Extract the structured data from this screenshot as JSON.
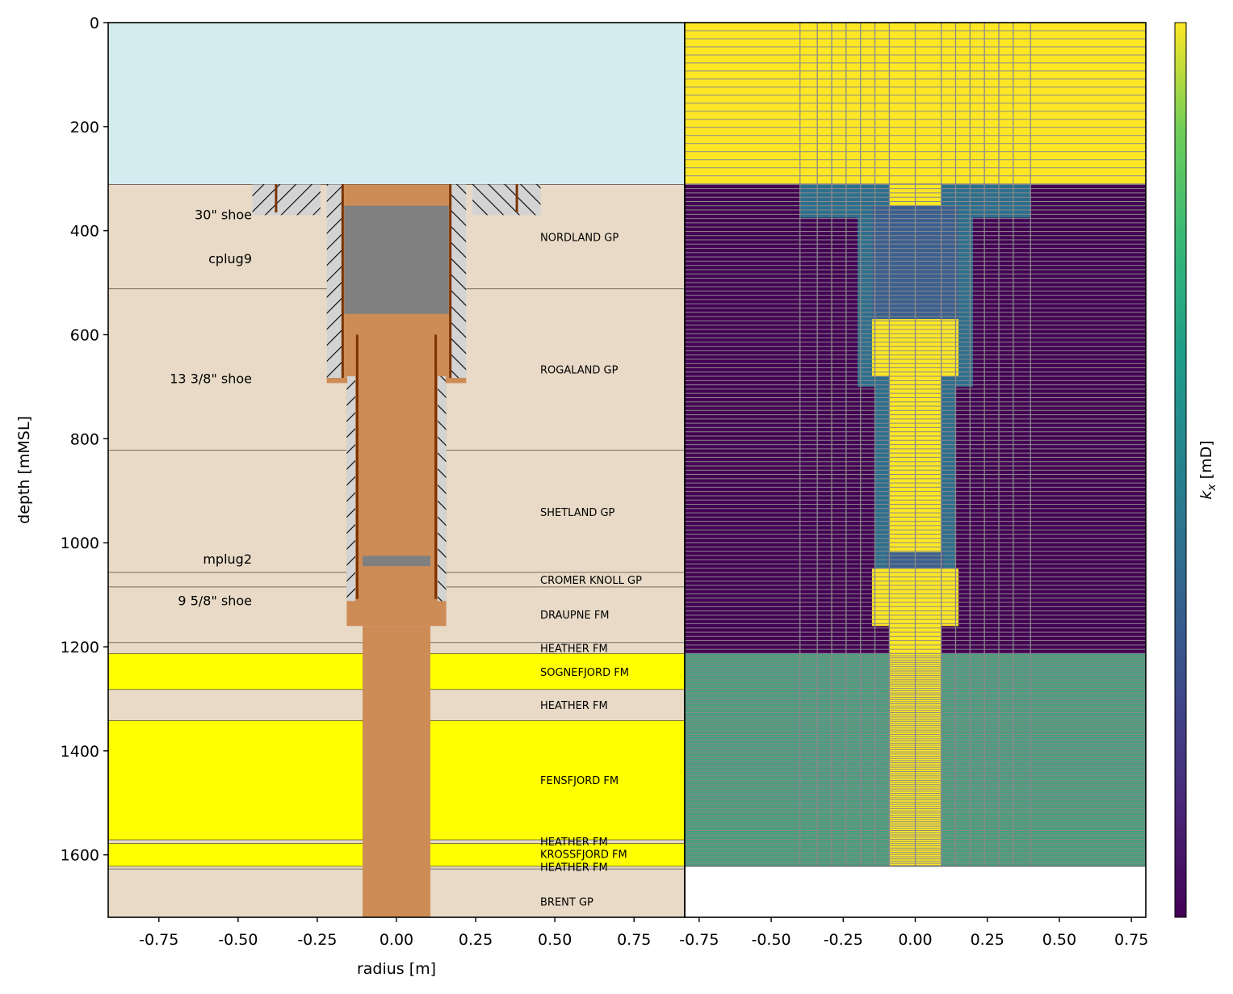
{
  "chart_data": [
    {
      "type": "well-schematic",
      "xlabel": "radius [m]",
      "ylabel": "depth [mMSL]",
      "xlim": [
        -0.91,
        0.91
      ],
      "ylim": [
        1720,
        0
      ],
      "xticks": [
        -0.75,
        -0.5,
        -0.25,
        0.0,
        0.25,
        0.5,
        0.75
      ],
      "xtick_labels": [
        "-0.75",
        "-0.50",
        "-0.25",
        "0.00",
        "0.25",
        "0.50",
        "0.75"
      ],
      "yticks": [
        0,
        200,
        400,
        600,
        800,
        1000,
        1200,
        1400,
        1600
      ],
      "ytick_labels": [
        "0",
        "200",
        "400",
        "600",
        "800",
        "1000",
        "1200",
        "1400",
        "1600"
      ],
      "water_bottom": 311,
      "formations": [
        {
          "name": "NORDLAND GP",
          "top": 311,
          "bottom": 512,
          "color": "#e8dac6"
        },
        {
          "name": "ROGALAND GP",
          "top": 512,
          "bottom": 822,
          "color": "#e8dac6"
        },
        {
          "name": "SHETLAND GP",
          "top": 822,
          "bottom": 1057,
          "color": "#e8dac6"
        },
        {
          "name": "CROMER KNOLL GP",
          "top": 1057,
          "bottom": 1085,
          "color": "#e8dac6"
        },
        {
          "name": "DRAUPNE FM",
          "top": 1085,
          "bottom": 1192,
          "color": "#e8dac6"
        },
        {
          "name": "HEATHER FM",
          "top": 1192,
          "bottom": 1213,
          "color": "#e8dac6"
        },
        {
          "name": "SOGNEFJORD FM",
          "top": 1213,
          "bottom": 1282,
          "color": "#ffff00"
        },
        {
          "name": "HEATHER FM",
          "top": 1282,
          "bottom": 1342,
          "color": "#e8dac6"
        },
        {
          "name": "FENSFJORD FM",
          "top": 1342,
          "bottom": 1571,
          "color": "#ffff00"
        },
        {
          "name": "HEATHER FM",
          "top": 1571,
          "bottom": 1578,
          "color": "#e8dac6"
        },
        {
          "name": "KROSSFJORD FM",
          "top": 1578,
          "bottom": 1622,
          "color": "#ffff00"
        },
        {
          "name": "HEATHER FM",
          "top": 1622,
          "bottom": 1627,
          "color": "#e8dac6"
        },
        {
          "name": "BRENT GP",
          "top": 1627,
          "bottom": 1720,
          "color": "#e8dac6"
        }
      ],
      "annotations": [
        {
          "text": "30\" shoe",
          "depth": 370
        },
        {
          "text": "cplug9",
          "depth": 455
        },
        {
          "text": "13 3/8\" shoe",
          "depth": 685
        },
        {
          "text": "mplug2",
          "depth": 1032
        },
        {
          "text": "9 5/8\" shoe",
          "depth": 1112
        }
      ]
    },
    {
      "type": "heatmap",
      "title": "",
      "xlim": [
        -0.8,
        0.8
      ],
      "ylim": [
        1720,
        0
      ],
      "xticks": [
        -0.75,
        -0.5,
        -0.25,
        0.0,
        0.25,
        0.5,
        0.75
      ],
      "xtick_labels": [
        "-0.75",
        "-0.50",
        "-0.25",
        "0.00",
        "0.25",
        "0.50",
        "0.75"
      ],
      "colorbar_label": "k_x [mD]",
      "colormap": "viridis",
      "grid_r": [
        0.09,
        0.14,
        0.19,
        0.24,
        0.29,
        0.34,
        0.4,
        0.8
      ],
      "zones": [
        {
          "name": "water",
          "top": 0,
          "bottom": 311,
          "r0": 0,
          "r1": 0.8,
          "color": "#fde725"
        },
        {
          "name": "formation-shallow",
          "top": 311,
          "bottom": 1213,
          "r0": 0,
          "r1": 0.8,
          "color": "#440154"
        },
        {
          "name": "formation-aquifer",
          "top": 1213,
          "bottom": 1515,
          "r0": 0,
          "r1": 0.8,
          "color": "#3fa07d"
        },
        {
          "name": "formation-deep",
          "top": 1515,
          "bottom": 1622,
          "r0": 0,
          "r1": 0.8,
          "color": "#3aa27a"
        },
        {
          "name": "conductor-cement",
          "top": 311,
          "bottom": 375,
          "r0": 0.15,
          "r1": 0.4,
          "color": "#2e6f8e"
        },
        {
          "name": "surface-casing-cement",
          "top": 311,
          "bottom": 700,
          "r0": 0.09,
          "r1": 0.2,
          "color": "#2e6f8e"
        },
        {
          "name": "production-casing-cement",
          "top": 680,
          "bottom": 1115,
          "r0": 0.09,
          "r1": 0.14,
          "color": "#2e6f8e"
        },
        {
          "name": "open-bore",
          "top": 311,
          "bottom": 1622,
          "r0": 0,
          "r1": 0.09,
          "color": "#fde725"
        },
        {
          "name": "cplug9",
          "top": 352,
          "bottom": 570,
          "r0": 0,
          "r1": 0.15,
          "color": "#3b5f8f"
        },
        {
          "name": "mplug2",
          "top": 1018,
          "bottom": 1050,
          "r0": 0,
          "r1": 0.1,
          "color": "#3b5f8f"
        },
        {
          "name": "casing-fluid",
          "top": 570,
          "bottom": 680,
          "r0": 0,
          "r1": 0.15,
          "color": "#fde725"
        },
        {
          "name": "bore-fluid",
          "top": 680,
          "bottom": 1018,
          "r0": 0,
          "r1": 0.09,
          "color": "#fde725"
        },
        {
          "name": "shoe-fluid",
          "top": 1050,
          "bottom": 1160,
          "r0": 0,
          "r1": 0.15,
          "color": "#fde725"
        }
      ]
    }
  ],
  "colors": {
    "water": "#d4ebf0",
    "shale": "#e8dac6",
    "sand": "#ffff00",
    "cement": "#cd8b56",
    "plug": "#808080",
    "annulus": "#d3d3d3",
    "casing": "#7a3300",
    "grid": "#8a8a8a"
  }
}
